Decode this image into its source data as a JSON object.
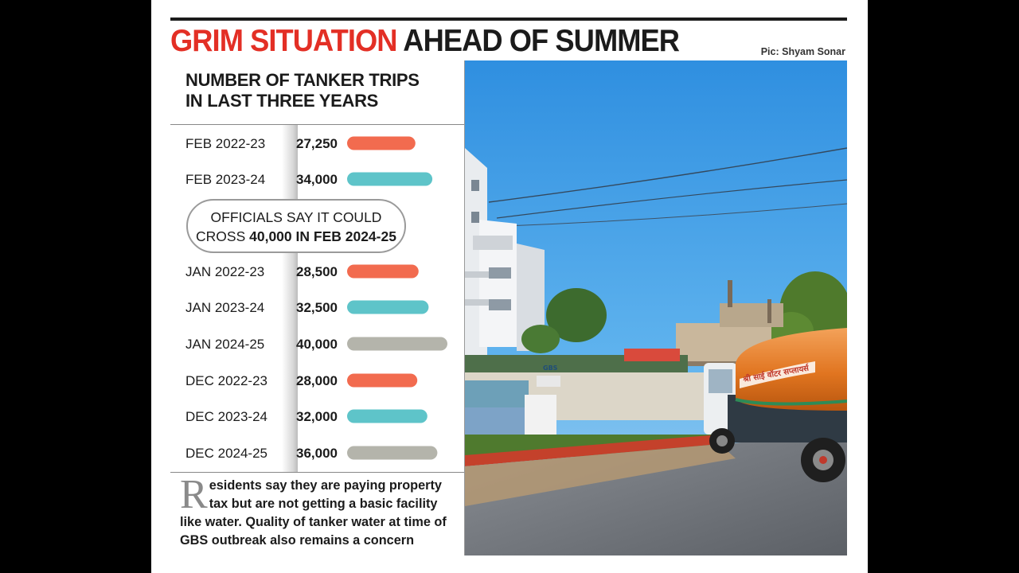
{
  "headline": {
    "red": "GRIM SITUATION",
    "black": "AHEAD OF SUMMER"
  },
  "credit": "Pic: Shyam Sonar",
  "panel_title": [
    "NUMBER OF TANKER TRIPS",
    "IN LAST THREE YEARS"
  ],
  "callout": {
    "line1": "OFFICIALS SAY IT COULD",
    "line2_prefix": "CROSS ",
    "line2_bold": "40,000 IN FEB 2024-25"
  },
  "quote": {
    "dropcap": "R",
    "text": "esidents say they are paying property tax but are not getting a basic facility like water. Quality of tanker water at time of GBS outbreak also remains a concern"
  },
  "colors": {
    "2022-23": "#f26b4f",
    "2023-24": "#5ec4c9",
    "2024-25": "#b4b4ab",
    "headline_red": "#e32f25"
  },
  "chart_data": {
    "type": "bar",
    "orientation": "horizontal",
    "title": "NUMBER OF TANKER TRIPS IN LAST THREE YEARS",
    "categories": [
      "FEB 2022-23",
      "FEB 2023-24",
      "JAN 2022-23",
      "JAN 2023-24",
      "JAN 2024-25",
      "DEC 2022-23",
      "DEC 2023-24",
      "DEC 2024-25"
    ],
    "values": [
      27250,
      34000,
      28500,
      32500,
      40000,
      28000,
      32000,
      36000
    ],
    "value_labels": [
      "27,250",
      "34,000",
      "28,500",
      "32,500",
      "40,000",
      "28,000",
      "32,000",
      "36,000"
    ],
    "series_key": [
      "2022-23",
      "2023-24",
      "2022-23",
      "2023-24",
      "2024-25",
      "2022-23",
      "2023-24",
      "2024-25"
    ]
  },
  "photo": {
    "signage": "श्री साई वॉटर सप्लायर्स",
    "board": "GBS"
  }
}
